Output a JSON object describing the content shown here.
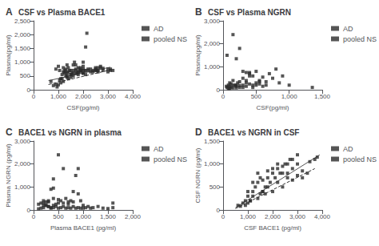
{
  "chart_data": [
    {
      "type": "scatter",
      "title": "CSF vs Plasma BACE1",
      "annotations": [
        "A"
      ],
      "xlabel": "CSF(pg/ml)",
      "ylabel": "Plasma(pg/ml)",
      "xlim": [
        0,
        4000
      ],
      "ylim": [
        0,
        2500
      ],
      "xticks": [
        0,
        1000,
        2000,
        3000,
        4000
      ],
      "yticks": [
        0,
        500,
        1000,
        1500,
        2000,
        2500
      ],
      "grid": false,
      "legend": "upper right",
      "series": [
        {
          "name": "AD",
          "type": "scatter",
          "color": "#2a2a2a",
          "marker": "square",
          "x": [
            900,
            1000,
            1050,
            1100,
            1150,
            1200,
            1200,
            1250,
            1300,
            1350,
            1350,
            1400,
            1450,
            1500,
            1500,
            1550,
            1600,
            1650,
            1700,
            1750,
            1800,
            1800,
            1850,
            1900,
            1950,
            2000,
            2000,
            2050,
            2100,
            2150,
            2200,
            2300,
            2400,
            2500,
            2550,
            2600,
            2700,
            2800,
            3000,
            3100,
            3200,
            2500,
            2600,
            1600,
            1700,
            2000,
            1900,
            1300,
            1400,
            1500,
            1600,
            1700,
            1800,
            1900,
            2000,
            2100,
            1250,
            1350
          ],
          "values": [
            750,
            850,
            700,
            400,
            550,
            650,
            800,
            600,
            750,
            500,
            900,
            650,
            700,
            550,
            450,
            600,
            700,
            1000,
            900,
            600,
            550,
            650,
            750,
            800,
            700,
            850,
            1000,
            700,
            1550,
            2050,
            750,
            650,
            700,
            750,
            700,
            650,
            800,
            700,
            650,
            750,
            700,
            700,
            800,
            900,
            700,
            600,
            700,
            650,
            800,
            700,
            600,
            750,
            800,
            650,
            750,
            700,
            700,
            600
          ]
        },
        {
          "name": "pooled NS",
          "type": "scatter",
          "color": "#2a2a2a",
          "marker": "square",
          "x": [
            700,
            800,
            900,
            950,
            1000,
            1050,
            1100,
            1150,
            1200,
            1300,
            1350,
            1400,
            1500,
            1600,
            1700,
            1800,
            1900,
            2000,
            2100,
            2200,
            2300,
            2400,
            2500,
            2600,
            2700,
            2800,
            3000,
            3100
          ],
          "values": [
            300,
            150,
            200,
            100,
            180,
            350,
            250,
            400,
            300,
            500,
            450,
            400,
            550,
            500,
            600,
            650,
            700,
            600,
            550,
            700,
            750,
            650,
            800,
            700,
            850,
            780,
            750,
            700
          ]
        },
        {
          "type": "line",
          "color": "#555555",
          "line_style": "solid",
          "x": [
            600,
            3100
          ],
          "values": [
            330,
            820
          ]
        },
        {
          "type": "line",
          "color": "#333333",
          "line_style": "dashed",
          "x": [
            600,
            3100
          ],
          "values": [
            190,
            720
          ]
        }
      ]
    },
    {
      "type": "scatter",
      "title": "CSF vs Plasma NGRN",
      "annotations": [
        "B"
      ],
      "xlabel": "CSF(pg/ml)",
      "ylabel": "Plasma(pg/ml)",
      "xlim": [
        0,
        1500
      ],
      "ylim": [
        0,
        3000
      ],
      "xticks": [
        0,
        500,
        1000,
        1500
      ],
      "yticks": [
        0,
        1000,
        2000,
        3000
      ],
      "grid": false,
      "legend": "upper right",
      "series": [
        {
          "name": "AD",
          "type": "scatter",
          "color": "#2a2a2a",
          "marker": "square",
          "x": [
            50,
            80,
            100,
            120,
            150,
            200,
            250,
            300,
            350,
            400,
            450,
            500,
            550,
            600,
            650,
            700,
            750,
            800,
            850,
            900,
            1000,
            1350,
            60,
            150,
            200,
            250,
            300,
            350,
            400,
            100,
            120,
            150,
            180,
            200,
            220,
            250,
            300,
            350,
            400,
            450,
            500,
            550,
            60,
            80,
            100,
            150,
            200,
            250,
            300,
            350,
            400,
            450,
            500,
            550,
            600,
            650
          ],
          "values": [
            150,
            200,
            300,
            250,
            400,
            200,
            350,
            500,
            300,
            700,
            600,
            800,
            400,
            550,
            350,
            700,
            500,
            900,
            300,
            600,
            200,
            100,
            1500,
            2400,
            1350,
            1800,
            800,
            750,
            750,
            50,
            100,
            80,
            200,
            150,
            300,
            100,
            200,
            400,
            600,
            200,
            300,
            350,
            100,
            50,
            150,
            200,
            80,
            180,
            100,
            150,
            250,
            100,
            200,
            250,
            150,
            200
          ]
        },
        {
          "name": "pooled NS",
          "type": "scatter",
          "color": "#2a2a2a",
          "marker": "square",
          "x": [],
          "values": []
        }
      ]
    },
    {
      "type": "scatter",
      "title": "BACE1 vs NGRN in plasma",
      "annotations": [
        "C"
      ],
      "xlabel": "Plasma BACE1 (pg/ml)",
      "ylabel": "Plasma NGRN (pg/ml)",
      "xlim": [
        0,
        2000
      ],
      "ylim": [
        0,
        3000
      ],
      "xticks": [
        0,
        500,
        1000,
        1500,
        2000
      ],
      "yticks": [
        0,
        1000,
        2000,
        3000
      ],
      "grid": false,
      "legend": "upper right",
      "series": [
        {
          "name": "AD",
          "type": "scatter",
          "color": "#2a2a2a",
          "marker": "square",
          "x": [
            200,
            250,
            300,
            350,
            400,
            400,
            450,
            500,
            500,
            550,
            600,
            650,
            700,
            750,
            800,
            850,
            900,
            900,
            950,
            1000,
            1600,
            100,
            150,
            200,
            250,
            300,
            350,
            400,
            100,
            150,
            200,
            250,
            300,
            350,
            400,
            450,
            500,
            550,
            600,
            650,
            700,
            750,
            800,
            850,
            900,
            950,
            1000,
            1050,
            1100,
            1150,
            1200,
            1300,
            1400,
            1500,
            1600,
            200,
            300,
            400,
            500,
            600,
            700,
            800
          ],
          "values": [
            300,
            200,
            400,
            900,
            950,
            1350,
            250,
            300,
            2400,
            400,
            1800,
            500,
            350,
            400,
            800,
            1500,
            1800,
            700,
            400,
            200,
            300,
            250,
            300,
            200,
            350,
            150,
            100,
            200,
            50,
            80,
            100,
            200,
            150,
            80,
            100,
            150,
            80,
            100,
            150,
            80,
            100,
            80,
            150,
            80,
            100,
            80,
            80,
            100,
            150,
            80,
            100,
            150,
            80,
            60,
            100,
            400,
            350,
            500,
            450,
            300,
            250,
            350
          ]
        },
        {
          "name": "pooled NS",
          "type": "scatter",
          "color": "#2a2a2a",
          "marker": "square",
          "x": [],
          "values": []
        }
      ]
    },
    {
      "type": "scatter",
      "title": "BACE1 vs NGRN in CSF",
      "annotations": [
        "D"
      ],
      "xlabel": "CSF BACE1 (pg/ml)",
      "ylabel": "CSF NGRN (pg/ml)",
      "xlim": [
        0,
        4000
      ],
      "ylim": [
        0,
        1500
      ],
      "xticks": [
        0,
        1000,
        2000,
        3000,
        4000
      ],
      "yticks": [
        0,
        500,
        1000,
        1500
      ],
      "grid": false,
      "legend": "upper right",
      "series": [
        {
          "name": "AD",
          "type": "scatter",
          "color": "#2a2a2a",
          "marker": "square",
          "x": [
            600,
            800,
            900,
            1000,
            1100,
            1200,
            1300,
            1400,
            1500,
            1600,
            1700,
            1800,
            1900,
            2000,
            2100,
            2200,
            2300,
            2400,
            2500,
            2600,
            2700,
            2800,
            3000,
            3200,
            3500,
            3700,
            3800,
            1000,
            1200,
            1400,
            1600,
            1800,
            2000,
            2200,
            2400,
            2600,
            2800,
            3000
          ],
          "values": [
            100,
            150,
            200,
            300,
            200,
            400,
            500,
            600,
            700,
            400,
            500,
            700,
            600,
            800,
            700,
            900,
            800,
            950,
            1000,
            800,
            1100,
            900,
            1000,
            850,
            1050,
            1100,
            1150,
            400,
            600,
            800,
            650,
            850,
            900,
            1000,
            800,
            1000,
            1100,
            1200
          ]
        },
        {
          "name": "pooled NS",
          "type": "scatter",
          "color": "#2a2a2a",
          "marker": "square",
          "x": [
            700,
            900,
            1000,
            1100,
            1200,
            1400,
            1500,
            1600,
            1700,
            1800,
            2000,
            2200,
            2400,
            2600,
            2800,
            3000,
            3200,
            3400
          ],
          "values": [
            80,
            100,
            150,
            200,
            300,
            250,
            350,
            400,
            350,
            500,
            400,
            600,
            500,
            700,
            650,
            750,
            700,
            800
          ]
        },
        {
          "type": "line",
          "color": "#555555",
          "line_style": "solid",
          "x": [
            500,
            3900
          ],
          "values": [
            50,
            1200
          ]
        },
        {
          "type": "line",
          "color": "#333333",
          "line_style": "dashed",
          "x": [
            500,
            3700
          ],
          "values": [
            30,
            900
          ]
        }
      ]
    }
  ]
}
